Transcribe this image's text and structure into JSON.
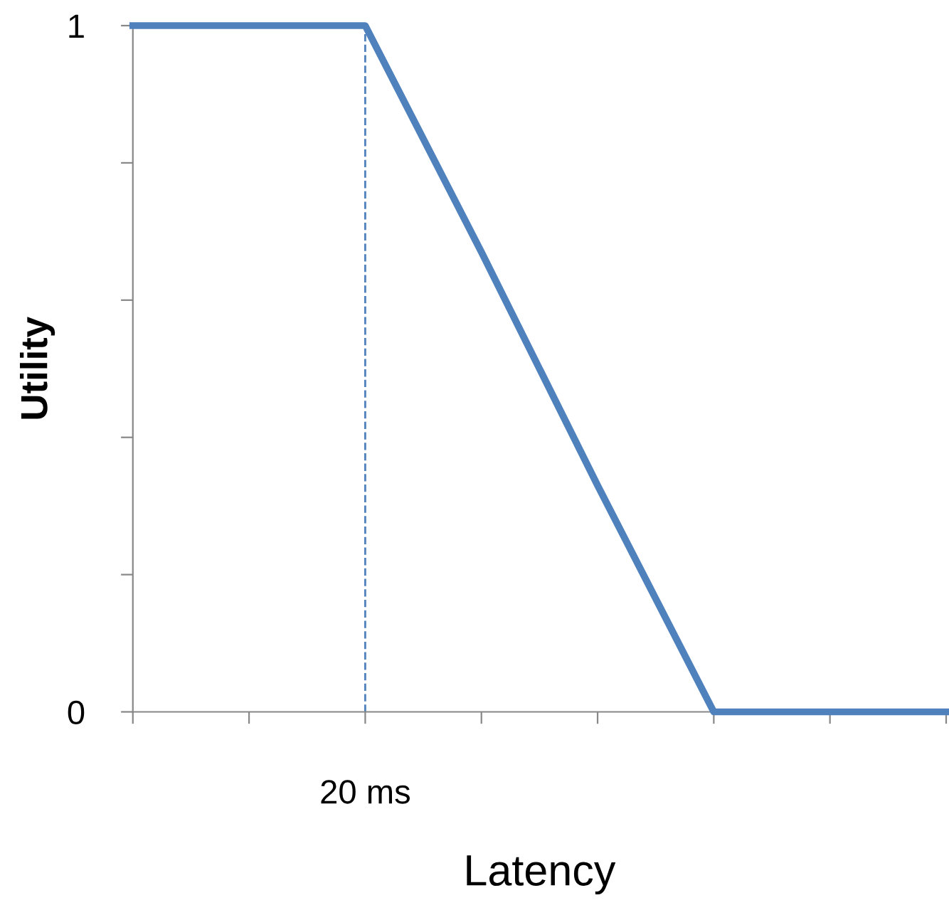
{
  "chart_data": {
    "type": "line",
    "xlabel": "Latency",
    "ylabel": "Utility",
    "categories": [
      null,
      null,
      "20 ms",
      null,
      null,
      null,
      null,
      null
    ],
    "series": [
      {
        "color": "#4f81bd",
        "values": [
          1,
          1,
          1,
          0.67,
          0.33,
          0,
          0,
          0
        ]
      }
    ],
    "ylim": [
      0,
      1
    ],
    "yticks": [
      {
        "value": 0,
        "label": "0"
      },
      {
        "value": 0.2,
        "label": null
      },
      {
        "value": 0.4,
        "label": null
      },
      {
        "value": 0.6,
        "label": null
      },
      {
        "value": 0.8,
        "label": null
      },
      {
        "value": 1,
        "label": "1"
      }
    ],
    "ref_lines": [
      {
        "axis": "x",
        "value": "20 ms",
        "color": "#4f81bd",
        "line_style": "dashed"
      }
    ],
    "grid": false,
    "legend": false,
    "marker": "none",
    "line_style": "solid"
  }
}
